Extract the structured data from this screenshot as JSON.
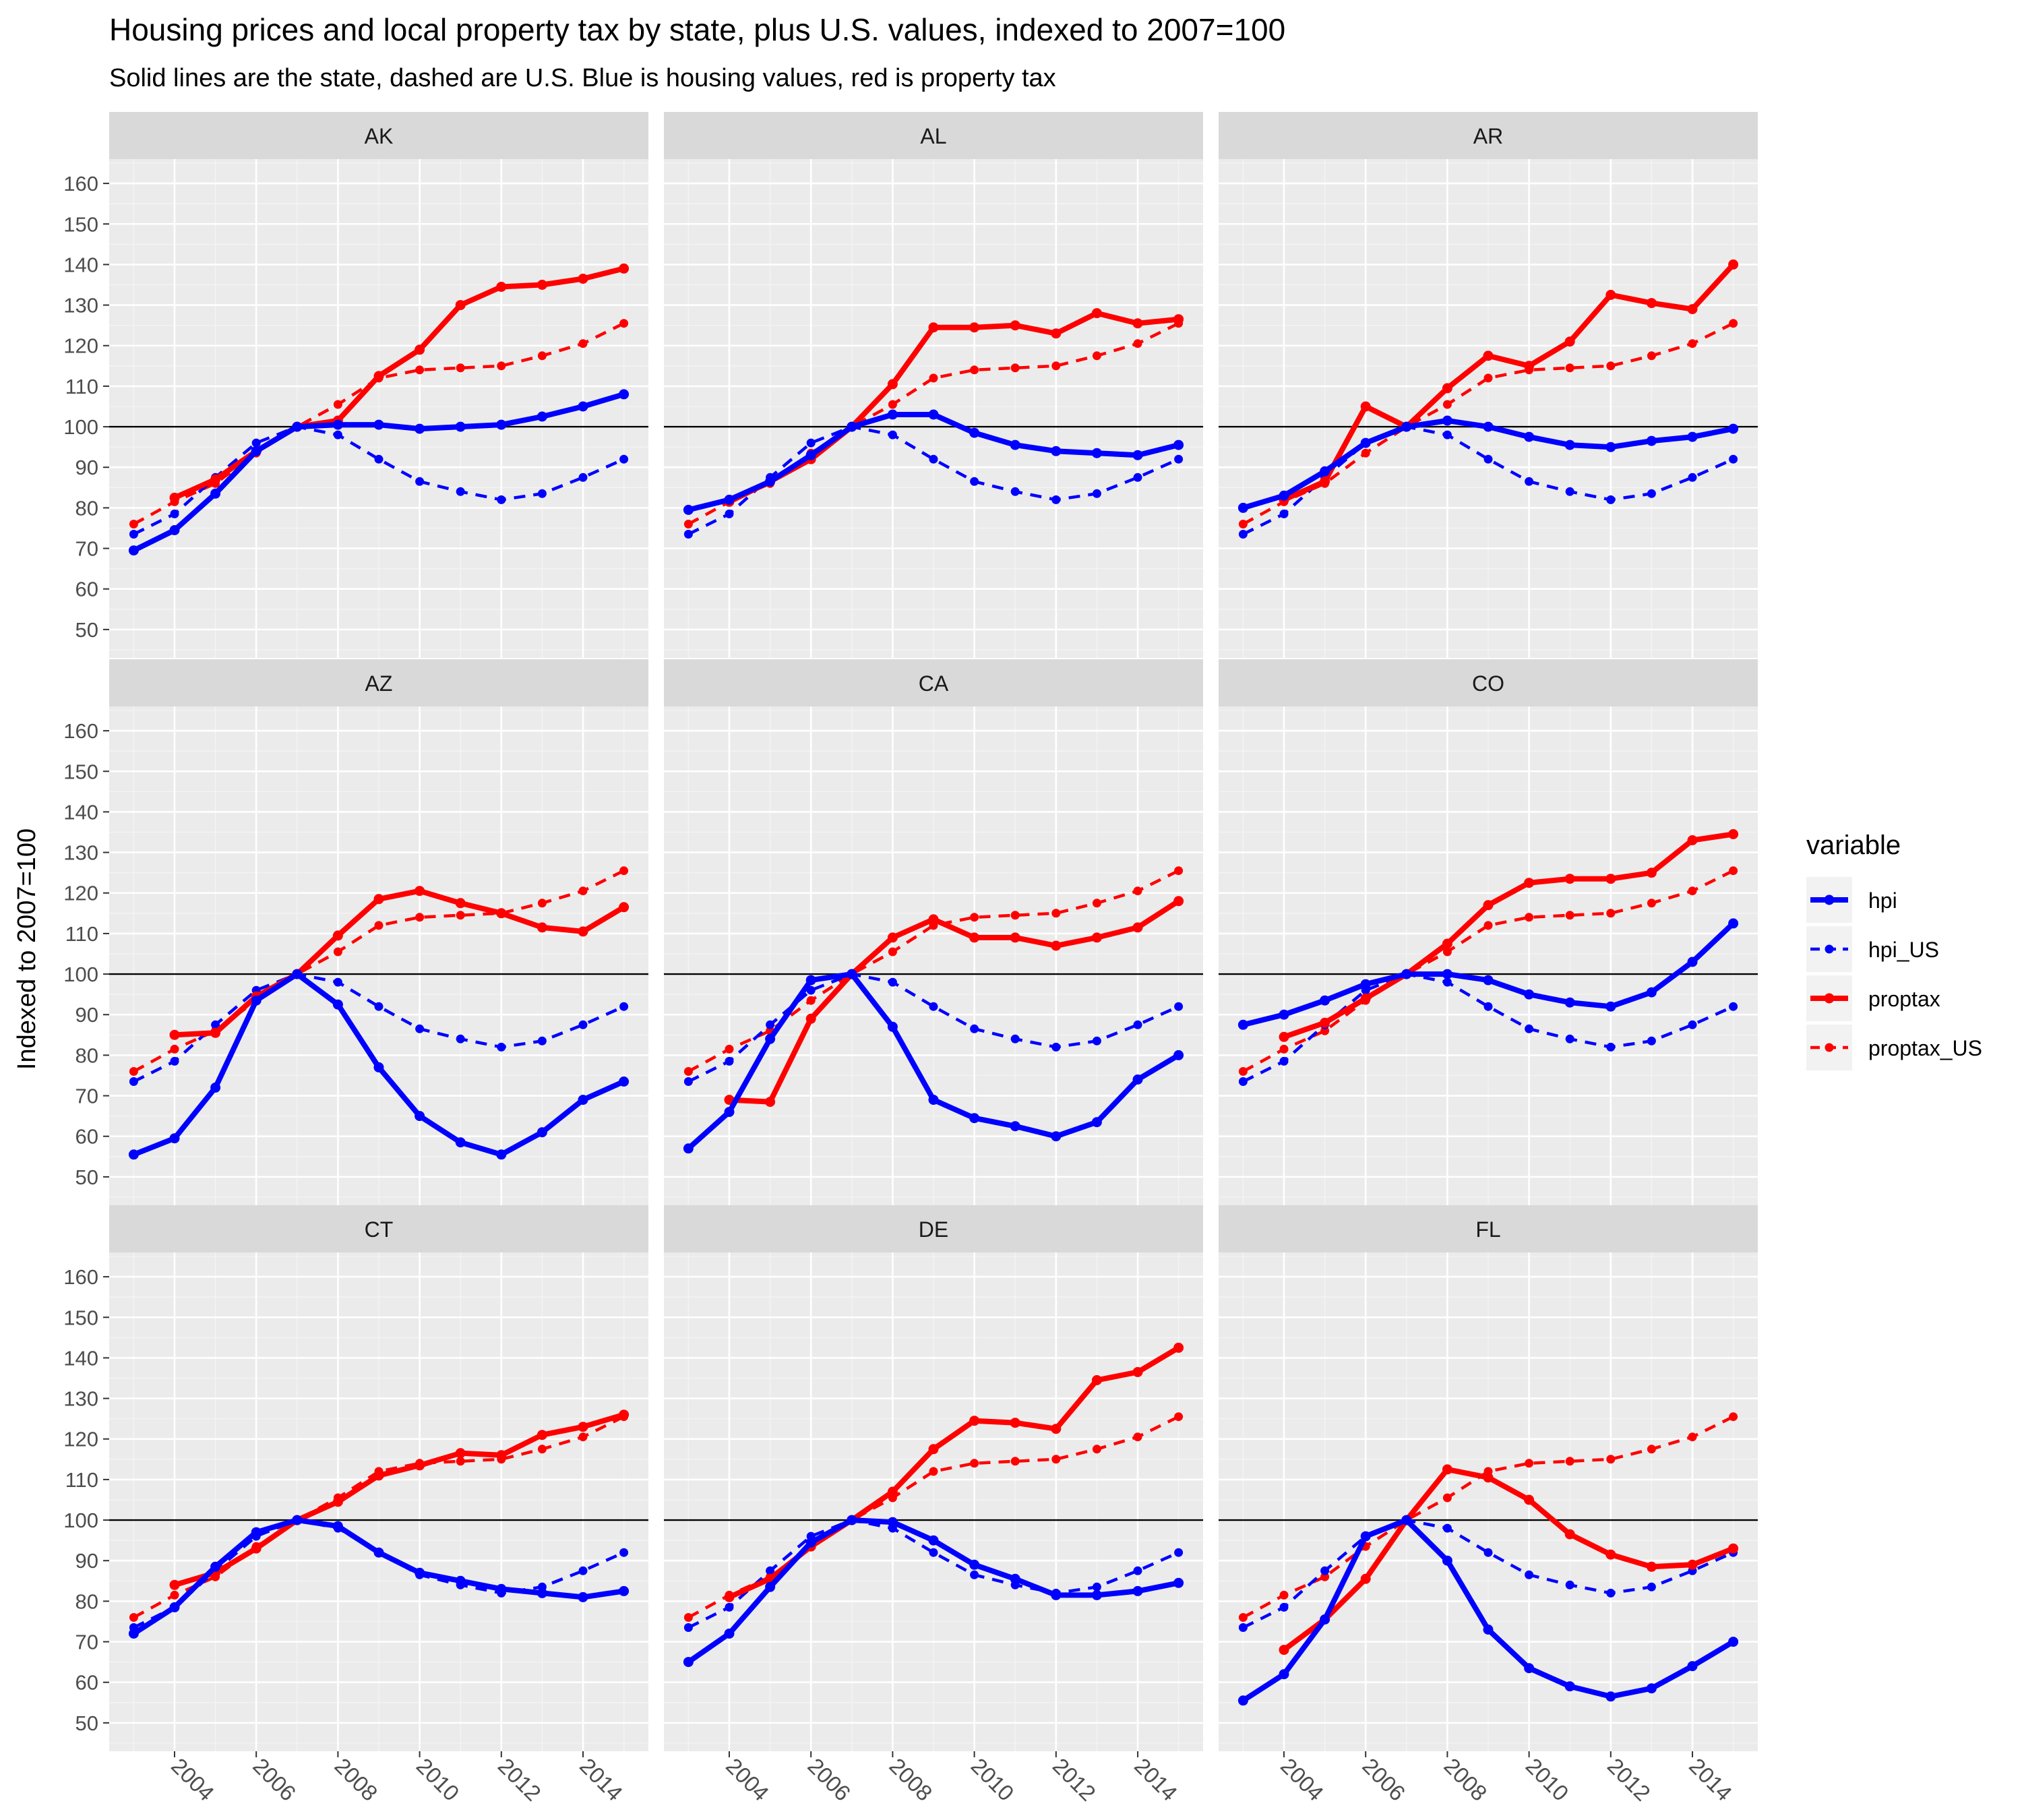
{
  "chart_data": {
    "type": "line",
    "title": "Housing prices and local property tax by state, plus U.S. values, indexed to 2007=100",
    "subtitle": "Solid lines are the state, dashed are U.S. Blue is housing values, red is property tax",
    "ylabel": "Indexed to 2007=100",
    "xlabel": "",
    "x": [
      2003,
      2004,
      2005,
      2006,
      2007,
      2008,
      2009,
      2010,
      2011,
      2012,
      2013,
      2014,
      2015
    ],
    "x_ticks": [
      "2004",
      "2006",
      "2008",
      "2010",
      "2012",
      "2014"
    ],
    "y_ticks": [
      "50",
      "60",
      "70",
      "80",
      "90",
      "100",
      "110",
      "120",
      "130",
      "140",
      "150",
      "160"
    ],
    "xlim": [
      2002.4,
      2015.6
    ],
    "ylim": [
      43,
      166
    ],
    "reference_line": 100,
    "legend": {
      "title": "variable",
      "position": "right",
      "items": [
        {
          "name": "hpi",
          "color": "#0000ff",
          "dashed": false
        },
        {
          "name": "hpi_US",
          "color": "#0000ff",
          "dashed": true
        },
        {
          "name": "proptax",
          "color": "#ff0000",
          "dashed": false
        },
        {
          "name": "proptax_US",
          "color": "#ff0000",
          "dashed": true
        }
      ]
    },
    "us_series": {
      "hpi_US": [
        73.5,
        78.5,
        87.5,
        96,
        100,
        98,
        92,
        86.5,
        84,
        82,
        83.5,
        87.5,
        92
      ],
      "proptax_US": [
        76,
        81.5,
        86,
        93.5,
        100,
        105.5,
        112,
        114,
        114.5,
        115,
        117.5,
        120.5,
        125.5
      ]
    },
    "panels": [
      {
        "state": "AK",
        "hpi": [
          69.5,
          74.5,
          83.5,
          94,
          100,
          100.5,
          100.5,
          99.5,
          100,
          100.5,
          102.5,
          105,
          108
        ],
        "proptax": [
          null,
          82.5,
          87,
          94,
          100,
          101.5,
          112.5,
          119,
          130,
          134.5,
          135,
          136.5,
          139
        ]
      },
      {
        "state": "AL",
        "hpi": [
          79.5,
          82,
          86.5,
          93,
          100,
          103,
          103,
          98.5,
          95.5,
          94,
          93.5,
          93,
          95.5
        ],
        "proptax": [
          null,
          81.5,
          86.5,
          92,
          100,
          110.5,
          124.5,
          124.5,
          125,
          123,
          128,
          125.5,
          126.5
        ]
      },
      {
        "state": "AR",
        "hpi": [
          80,
          83,
          89,
          96,
          100,
          101.5,
          100,
          97.5,
          95.5,
          95,
          96.5,
          97.5,
          99.5
        ],
        "proptax": [
          null,
          82,
          86.5,
          105,
          100,
          109.5,
          117.5,
          115,
          121,
          132.5,
          130.5,
          129,
          140
        ]
      },
      {
        "state": "AZ",
        "hpi": [
          55.5,
          59.5,
          72,
          93.5,
          100,
          92.5,
          77,
          65,
          58.5,
          55.5,
          61,
          69,
          73.5
        ],
        "proptax": [
          null,
          85,
          85.5,
          94.5,
          100,
          109.5,
          118.5,
          120.5,
          117.5,
          115,
          111.5,
          110.5,
          116.5
        ]
      },
      {
        "state": "CA",
        "hpi": [
          57,
          66,
          84,
          98.5,
          100,
          87,
          69,
          64.5,
          62.5,
          60,
          63.5,
          74,
          80
        ],
        "proptax": [
          null,
          69,
          68.5,
          89,
          100,
          109,
          113.5,
          109,
          109,
          107,
          109,
          111.5,
          118
        ]
      },
      {
        "state": "CO",
        "hpi": [
          87.5,
          90,
          93.5,
          97.5,
          100,
          100,
          98.5,
          95,
          93,
          92,
          95.5,
          103,
          112.5
        ],
        "proptax": [
          null,
          84.5,
          88,
          94,
          100,
          107.5,
          117,
          122.5,
          123.5,
          123.5,
          125,
          133,
          134.5
        ]
      },
      {
        "state": "CT",
        "hpi": [
          72,
          78.5,
          88.5,
          97,
          100,
          98.5,
          92,
          87,
          85,
          83,
          82,
          81,
          82.5
        ],
        "proptax": [
          null,
          84,
          87,
          93,
          100,
          104.5,
          111,
          113.5,
          116.5,
          116,
          121,
          123,
          126
        ]
      },
      {
        "state": "DE",
        "hpi": [
          65,
          72,
          83.5,
          94.5,
          100,
          99.5,
          95,
          89,
          85.5,
          81.5,
          81.5,
          82.5,
          84.5
        ],
        "proptax": [
          null,
          81,
          85.5,
          93.5,
          100,
          107,
          117.5,
          124.5,
          124,
          122.5,
          134.5,
          136.5,
          142.5
        ]
      },
      {
        "state": "FL",
        "hpi": [
          55.5,
          62,
          75.5,
          96,
          100,
          90,
          73,
          63.5,
          59,
          56.5,
          58.5,
          64,
          70
        ],
        "proptax": [
          null,
          68,
          75.5,
          85.5,
          100,
          112.5,
          110.5,
          105,
          96.5,
          91.5,
          88.5,
          89,
          93
        ]
      }
    ]
  }
}
